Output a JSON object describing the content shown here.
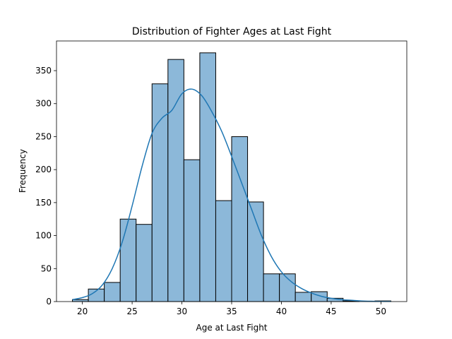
{
  "chart_data": {
    "type": "bar",
    "subtype": "histogram-with-kde",
    "title": "Distribution of Fighter Ages at Last Fight",
    "xlabel": "Age at Last Fight",
    "ylabel": "Frequency",
    "xlim": [
      17.4,
      52.6
    ],
    "ylim": [
      0,
      395
    ],
    "xticks": [
      20,
      25,
      30,
      35,
      40,
      45,
      50
    ],
    "yticks": [
      0,
      50,
      100,
      150,
      200,
      250,
      300,
      350
    ],
    "grid": false,
    "bins": [
      {
        "x0": 19.0,
        "x1": 20.6,
        "value": 3
      },
      {
        "x0": 20.6,
        "x1": 22.2,
        "value": 19
      },
      {
        "x0": 22.2,
        "x1": 23.8,
        "value": 29
      },
      {
        "x0": 23.8,
        "x1": 25.4,
        "value": 125
      },
      {
        "x0": 25.4,
        "x1": 27.0,
        "value": 117
      },
      {
        "x0": 27.0,
        "x1": 28.6,
        "value": 330
      },
      {
        "x0": 28.6,
        "x1": 30.2,
        "value": 367
      },
      {
        "x0": 30.2,
        "x1": 31.8,
        "value": 215
      },
      {
        "x0": 31.8,
        "x1": 33.4,
        "value": 377
      },
      {
        "x0": 33.4,
        "x1": 35.0,
        "value": 153
      },
      {
        "x0": 35.0,
        "x1": 36.6,
        "value": 250
      },
      {
        "x0": 36.6,
        "x1": 38.2,
        "value": 151
      },
      {
        "x0": 38.2,
        "x1": 39.8,
        "value": 42
      },
      {
        "x0": 39.8,
        "x1": 41.4,
        "value": 42
      },
      {
        "x0": 41.4,
        "x1": 43.0,
        "value": 14
      },
      {
        "x0": 43.0,
        "x1": 44.6,
        "value": 15
      },
      {
        "x0": 44.6,
        "x1": 46.2,
        "value": 5
      },
      {
        "x0": 46.2,
        "x1": 47.8,
        "value": 1
      },
      {
        "x0": 47.8,
        "x1": 49.4,
        "value": 0
      },
      {
        "x0": 49.4,
        "x1": 51.0,
        "value": 1
      }
    ],
    "kde": {
      "x": [
        19.0,
        20.0,
        21.0,
        22.0,
        23.0,
        24.0,
        25.0,
        26.0,
        27.0,
        28.0,
        29.0,
        30.0,
        31.0,
        32.0,
        33.0,
        34.0,
        35.0,
        36.0,
        37.0,
        38.0,
        39.0,
        40.0,
        41.0,
        42.0,
        43.0,
        44.0,
        45.0,
        46.0,
        47.0,
        48.0,
        49.0,
        50.0,
        51.0
      ],
      "y": [
        3,
        6,
        12,
        25,
        50,
        90,
        145,
        205,
        255,
        278,
        290,
        315,
        322,
        312,
        288,
        258,
        220,
        180,
        140,
        100,
        68,
        45,
        30,
        20,
        13,
        8,
        5,
        3,
        2,
        1,
        0.5,
        0.3,
        0.2
      ]
    },
    "colors": {
      "bar_fill": "#8cb8d9",
      "bar_edge": "#000000",
      "kde_line": "#1f77b4"
    }
  }
}
